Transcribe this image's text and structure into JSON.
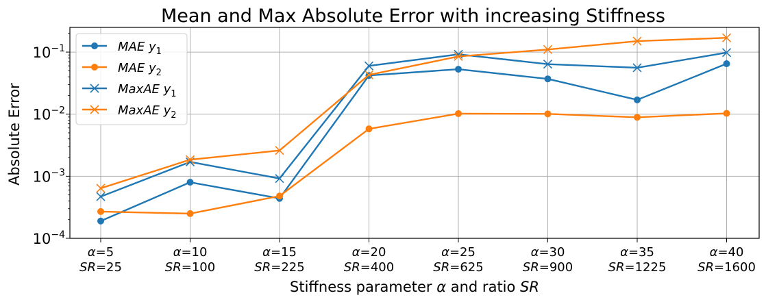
{
  "chart_data": {
    "type": "line",
    "title": "Mean and Max Absolute Error with increasing Stiffness",
    "xlabel": "Stiffness parameter α and ratio SR",
    "ylabel": "Absolute Error",
    "yscale": "log",
    "ylim": [
      0.0001,
      0.25
    ],
    "grid": true,
    "legend_position": "top-left",
    "categories": [
      {
        "alpha": "α=5",
        "sr": "SR=25"
      },
      {
        "alpha": "α=10",
        "sr": "SR=100"
      },
      {
        "alpha": "α=15",
        "sr": "SR=225"
      },
      {
        "alpha": "α=20",
        "sr": "SR=400"
      },
      {
        "alpha": "α=25",
        "sr": "SR=625"
      },
      {
        "alpha": "α=30",
        "sr": "SR=900"
      },
      {
        "alpha": "α=35",
        "sr": "SR=1225"
      },
      {
        "alpha": "α=40",
        "sr": "SR=1600"
      }
    ],
    "y_ticks": [
      {
        "value": 0.0001,
        "base": "10",
        "exp": "−4"
      },
      {
        "value": 0.001,
        "base": "10",
        "exp": "−3"
      },
      {
        "value": 0.01,
        "base": "10",
        "exp": "−2"
      },
      {
        "value": 0.1,
        "base": "10",
        "exp": "−1"
      }
    ],
    "series": [
      {
        "name": "MAE y1",
        "label": "MAE",
        "sub": "1",
        "color": "#1f77b4",
        "marker": "circle",
        "values": [
          0.00019,
          0.0008,
          0.00044,
          0.042,
          0.053,
          0.037,
          0.017,
          0.065
        ]
      },
      {
        "name": "MAE y2",
        "label": "MAE",
        "sub": "2",
        "color": "#ff7f0e",
        "marker": "circle",
        "values": [
          0.00027,
          0.00025,
          0.00048,
          0.0058,
          0.0102,
          0.0101,
          0.0089,
          0.0103
        ]
      },
      {
        "name": "MaxAE y1",
        "label": "MaxAE",
        "sub": "1",
        "color": "#1f77b4",
        "marker": "x",
        "values": [
          0.00047,
          0.0017,
          0.00092,
          0.06,
          0.092,
          0.064,
          0.056,
          0.098
        ]
      },
      {
        "name": "MaxAE y2",
        "label": "MaxAE",
        "sub": "2",
        "color": "#ff7f0e",
        "marker": "x",
        "values": [
          0.00064,
          0.00185,
          0.0026,
          0.043,
          0.085,
          0.11,
          0.15,
          0.17
        ]
      }
    ]
  }
}
